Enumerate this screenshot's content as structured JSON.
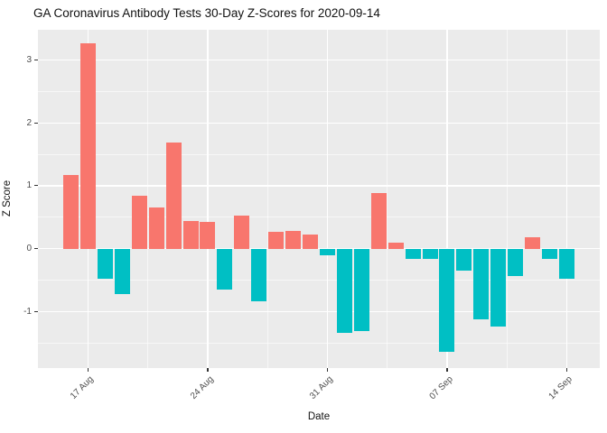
{
  "title": "GA Coronavirus Antibody Tests 30-Day Z-Scores for 2020-09-14",
  "colors": {
    "positive_bar": "#F8766D",
    "negative_bar": "#00BFC4",
    "panel_background": "#EBEBEB",
    "gridline": "#FFFFFF",
    "axis_text": "#4D4D4D",
    "title_text": "#111111"
  },
  "chart_data": {
    "type": "bar",
    "title": "GA Coronavirus Antibody Tests 30-Day Z-Scores for 2020-09-14",
    "xlabel": "Date",
    "ylabel": "Z Score",
    "ylim": [
      -1.9,
      3.48
    ],
    "grid": "on",
    "legend": "none",
    "y_major_ticks": [
      3,
      2,
      1,
      0,
      -1
    ],
    "y_major_tick_labels": [
      "3",
      "2",
      "1",
      "0",
      "-1"
    ],
    "y_minor_ticks": [
      2.5,
      1.5,
      0.5,
      -0.5,
      -1.5
    ],
    "x_major_ticks": [
      {
        "label": "17 Aug",
        "day_index": 1
      },
      {
        "label": "24 Aug",
        "day_index": 8
      },
      {
        "label": "31 Aug",
        "day_index": 15
      },
      {
        "label": "07 Sep",
        "day_index": 22
      },
      {
        "label": "14 Sep",
        "day_index": 29
      }
    ],
    "x_minor_tick_day_indices": [
      4.5,
      11.5,
      18.5,
      25.5
    ],
    "x": [
      "2020-08-16",
      "2020-08-17",
      "2020-08-18",
      "2020-08-19",
      "2020-08-20",
      "2020-08-21",
      "2020-08-22",
      "2020-08-23",
      "2020-08-24",
      "2020-08-25",
      "2020-08-26",
      "2020-08-27",
      "2020-08-28",
      "2020-08-29",
      "2020-08-30",
      "2020-08-31",
      "2020-09-01",
      "2020-09-02",
      "2020-09-03",
      "2020-09-04",
      "2020-09-05",
      "2020-09-06",
      "2020-09-07",
      "2020-09-08",
      "2020-09-09",
      "2020-09-10",
      "2020-09-11",
      "2020-09-12",
      "2020-09-13",
      "2020-09-14"
    ],
    "values": [
      1.17,
      3.26,
      -0.48,
      -0.72,
      0.84,
      0.65,
      1.68,
      0.44,
      0.42,
      -0.65,
      0.52,
      -0.84,
      0.26,
      0.28,
      0.23,
      -0.1,
      -1.34,
      -1.31,
      0.88,
      0.1,
      -0.16,
      -0.16,
      -1.64,
      -0.35,
      -1.13,
      -1.24,
      -0.43,
      0.18,
      -0.16,
      -0.48
    ]
  }
}
